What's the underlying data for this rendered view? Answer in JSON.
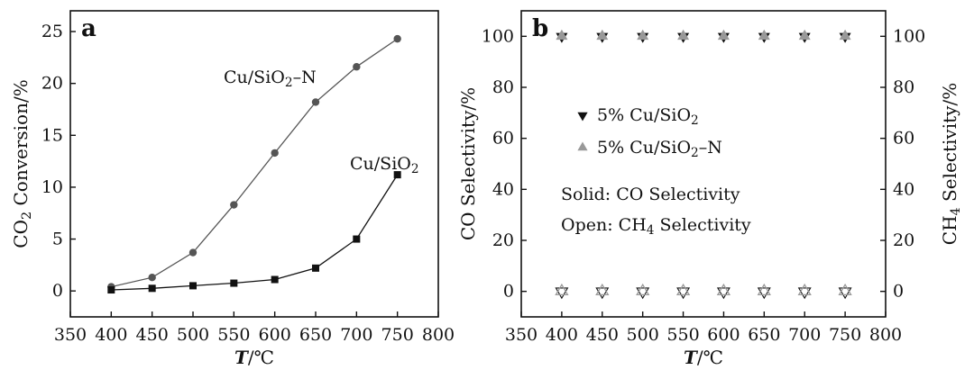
{
  "chart_data": [
    {
      "type": "line",
      "panel_label": "a",
      "xlabel": {
        "italic": "T",
        "rest": "/℃"
      },
      "ylabel": {
        "pre": "CO",
        "sub": "2",
        "post": " Conversion/%"
      },
      "xlim": [
        350,
        800
      ],
      "ylim": [
        -2.5,
        27
      ],
      "xticks": [
        350,
        400,
        450,
        500,
        550,
        600,
        650,
        700,
        750,
        800
      ],
      "yticks": [
        0,
        5,
        10,
        15,
        20,
        25
      ],
      "x": [
        400,
        450,
        500,
        550,
        600,
        650,
        700,
        750
      ],
      "series": [
        {
          "name": {
            "pre": "Cu/SiO",
            "sub": "2",
            "post": "–N"
          },
          "marker": "circle",
          "color": "#555555",
          "values": [
            0.4,
            1.3,
            3.7,
            8.3,
            13.3,
            18.2,
            21.6,
            24.3
          ]
        },
        {
          "name": {
            "pre": "Cu/SiO",
            "sub": "2",
            "post": ""
          },
          "marker": "square",
          "color": "#111111",
          "values": [
            0.1,
            0.25,
            0.5,
            0.75,
            1.1,
            2.2,
            5.0,
            11.2
          ]
        }
      ]
    },
    {
      "type": "scatter",
      "panel_label": "b",
      "xlabel": {
        "italic": "T",
        "rest": "/℃"
      },
      "ylabel": {
        "pre": "CO Selectivity/%",
        "sub": "",
        "post": ""
      },
      "ylabel_right": {
        "pre": "CH",
        "sub": "4",
        "post": " Selectivity/%"
      },
      "xlim": [
        350,
        800
      ],
      "ylim": [
        -10,
        110
      ],
      "xticks": [
        350,
        400,
        450,
        500,
        550,
        600,
        650,
        700,
        750,
        800
      ],
      "yticks": [
        0,
        20,
        40,
        60,
        80,
        100
      ],
      "x": [
        400,
        450,
        500,
        550,
        600,
        650,
        700,
        750
      ],
      "series": [
        {
          "name": {
            "pre": "5% Cu/SiO",
            "sub": "2",
            "post": ""
          },
          "marker": "triangle-down",
          "color": "#111111",
          "co_selectivity": [
            100,
            100,
            100,
            100,
            100,
            100,
            100,
            100
          ],
          "ch4_selectivity": [
            0,
            0,
            0,
            0,
            0,
            0,
            0,
            0
          ]
        },
        {
          "name": {
            "pre": "5% Cu/SiO",
            "sub": "2",
            "post": "–N"
          },
          "marker": "triangle-up",
          "color": "#999999",
          "co_selectivity": [
            100,
            100,
            100,
            100,
            100,
            100,
            100,
            100
          ],
          "ch4_selectivity": [
            0,
            0,
            0,
            0,
            0,
            0,
            0,
            0
          ]
        }
      ],
      "notes": [
        "Solid: CO Selectivity",
        {
          "pre": "Open: CH",
          "sub": "4",
          "post": " Selectivity"
        }
      ]
    }
  ]
}
